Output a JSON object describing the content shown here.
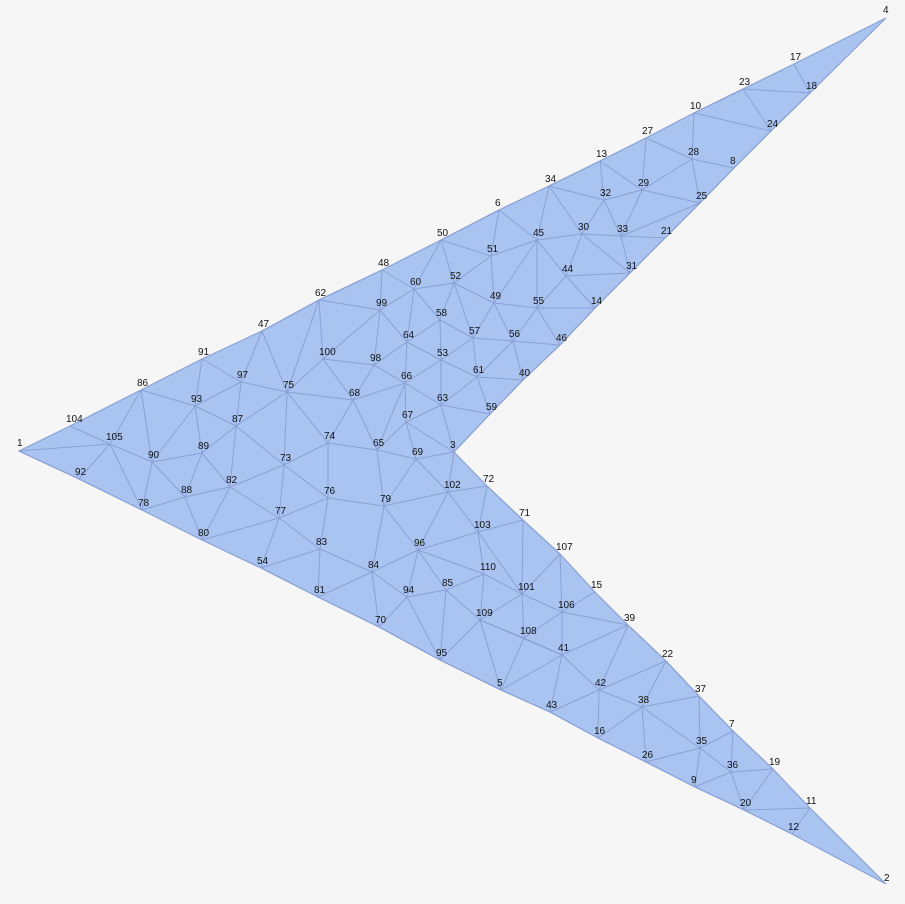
{
  "diagram": {
    "title": "",
    "fill_color": "#aac4f2",
    "edge_color": "#8aa0d4",
    "background": "#f6f6f6",
    "node_labels": [
      "1",
      "2",
      "3",
      "4",
      "5",
      "6",
      "7",
      "8",
      "9",
      "10",
      "11",
      "12",
      "13",
      "14",
      "15",
      "16",
      "17",
      "18",
      "19",
      "20",
      "21",
      "22",
      "23",
      "24",
      "25",
      "26",
      "27",
      "28",
      "29",
      "30",
      "31",
      "32",
      "33",
      "34",
      "35",
      "36",
      "37",
      "38",
      "39",
      "40",
      "41",
      "42",
      "43",
      "44",
      "45",
      "46",
      "47",
      "48",
      "49",
      "50",
      "51",
      "52",
      "53",
      "54",
      "55",
      "56",
      "57",
      "58",
      "59",
      "60",
      "61",
      "62",
      "63",
      "64",
      "65",
      "66",
      "67",
      "68",
      "69",
      "70",
      "71",
      "72",
      "73",
      "74",
      "75",
      "76",
      "77",
      "78",
      "79",
      "80",
      "81",
      "82",
      "83",
      "84",
      "85",
      "86",
      "87",
      "88",
      "89",
      "90",
      "91",
      "92",
      "93",
      "94",
      "95",
      "96",
      "97",
      "98",
      "99",
      "100",
      "101",
      "102",
      "103",
      "104",
      "105",
      "106",
      "107",
      "108",
      "109",
      "110"
    ]
  }
}
